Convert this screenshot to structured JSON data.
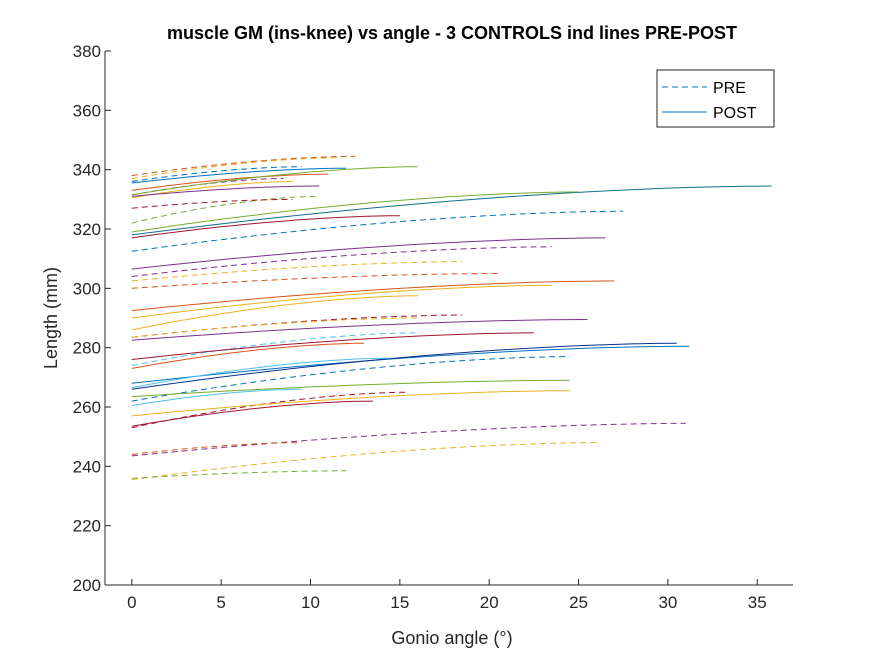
{
  "chart_data": {
    "type": "line",
    "title": "muscle GM (ins-knee) vs angle - 3 CONTROLS ind lines PRE-POST",
    "xlabel": "Gonio angle (°)",
    "ylabel": "Length (mm)",
    "xlim": [
      -1.5,
      37
    ],
    "ylim": [
      200,
      380
    ],
    "xticks": [
      0,
      5,
      10,
      15,
      20,
      25,
      30,
      35
    ],
    "yticks": [
      200,
      220,
      240,
      260,
      280,
      300,
      320,
      340,
      360,
      380
    ],
    "grid": false,
    "legend": {
      "position": "top-right",
      "entries": [
        {
          "label": "PRE",
          "style": "dashed",
          "color": "#0072BD"
        },
        {
          "label": "POST",
          "style": "solid",
          "color": "#0072BD"
        }
      ]
    },
    "series": [
      {
        "style": "dashed",
        "color": "#0072BD",
        "x": [
          0,
          9.5
        ],
        "y": [
          336,
          341
        ]
      },
      {
        "style": "dashed",
        "color": "#D95319",
        "x": [
          0,
          12.5
        ],
        "y": [
          338,
          344.5
        ]
      },
      {
        "style": "dashed",
        "color": "#EDB120",
        "x": [
          0,
          11.5
        ],
        "y": [
          337,
          344
        ]
      },
      {
        "style": "dashed",
        "color": "#7E2F8E",
        "x": [
          0,
          8.5
        ],
        "y": [
          331.5,
          337
        ]
      },
      {
        "style": "dashed",
        "color": "#77AC30",
        "x": [
          0,
          10.5
        ],
        "y": [
          322,
          331
        ]
      },
      {
        "style": "dashed",
        "color": "#A2142F",
        "x": [
          0,
          9
        ],
        "y": [
          327,
          330
        ]
      },
      {
        "style": "dashed",
        "color": "#0072BD",
        "x": [
          0,
          27.5
        ],
        "y": [
          312.5,
          326
        ]
      },
      {
        "style": "dashed",
        "color": "#7E2F8E",
        "x": [
          0,
          23.5
        ],
        "y": [
          304,
          314
        ]
      },
      {
        "style": "dashed",
        "color": "#EDB120",
        "x": [
          0,
          18.5
        ],
        "y": [
          302.5,
          309
        ]
      },
      {
        "style": "dashed",
        "color": "#D95319",
        "x": [
          0,
          20.5
        ],
        "y": [
          300,
          305
        ]
      },
      {
        "style": "dashed",
        "color": "#A2142F",
        "x": [
          0,
          18.5
        ],
        "y": [
          283.5,
          291
        ]
      },
      {
        "style": "dashed",
        "color": "#EDB120",
        "x": [
          0,
          16
        ],
        "y": [
          283.5,
          290
        ]
      },
      {
        "style": "dashed",
        "color": "#4DBEEE",
        "x": [
          0,
          16
        ],
        "y": [
          274,
          285
        ]
      },
      {
        "style": "dashed",
        "color": "#0072BD",
        "x": [
          0,
          24.5
        ],
        "y": [
          262,
          277
        ]
      },
      {
        "style": "dashed",
        "color": "#7E2F8E",
        "x": [
          0,
          31
        ],
        "y": [
          243.5,
          254.5
        ]
      },
      {
        "style": "dashed",
        "color": "#EDB120",
        "x": [
          0,
          26
        ],
        "y": [
          235.5,
          248
        ]
      },
      {
        "style": "dashed",
        "color": "#77AC30",
        "x": [
          0,
          12
        ],
        "y": [
          236,
          238.5
        ]
      },
      {
        "style": "dashed",
        "color": "#D95319",
        "x": [
          0,
          9.5
        ],
        "y": [
          244,
          248
        ]
      },
      {
        "style": "dashed",
        "color": "#A2142F",
        "x": [
          0,
          15.5
        ],
        "y": [
          253,
          265
        ]
      },
      {
        "style": "solid",
        "color": "#0072BD",
        "x": [
          0,
          12
        ],
        "y": [
          335.5,
          340.5
        ]
      },
      {
        "style": "solid",
        "color": "#D95319",
        "x": [
          0,
          11
        ],
        "y": [
          333,
          338.5
        ]
      },
      {
        "style": "solid",
        "color": "#EDB120",
        "x": [
          0,
          9
        ],
        "y": [
          330.5,
          336
        ]
      },
      {
        "style": "solid",
        "color": "#7E2F8E",
        "x": [
          0,
          10.5
        ],
        "y": [
          331,
          334.5
        ]
      },
      {
        "style": "solid",
        "color": "#77AC30",
        "x": [
          0,
          16
        ],
        "y": [
          331.5,
          341
        ]
      },
      {
        "style": "solid",
        "color": "#0F6E8C",
        "x": [
          0,
          35.8
        ],
        "y": [
          318,
          334.5
        ]
      },
      {
        "style": "solid",
        "color": "#77AC30",
        "x": [
          0,
          25
        ],
        "y": [
          319,
          332.5
        ]
      },
      {
        "style": "solid",
        "color": "#A2142F",
        "x": [
          0,
          15
        ],
        "y": [
          317,
          324.5
        ]
      },
      {
        "style": "solid",
        "color": "#7E2F8E",
        "x": [
          0,
          26.5
        ],
        "y": [
          306.5,
          317
        ]
      },
      {
        "style": "solid",
        "color": "#D95319",
        "x": [
          0,
          27
        ],
        "y": [
          292.5,
          302.5
        ]
      },
      {
        "style": "solid",
        "color": "#EDB120",
        "x": [
          0,
          23.5
        ],
        "y": [
          290,
          301
        ]
      },
      {
        "style": "solid",
        "color": "#EDB120",
        "x": [
          0,
          16
        ],
        "y": [
          286,
          297.5
        ]
      },
      {
        "style": "solid",
        "color": "#7E2F8E",
        "x": [
          0,
          25.5
        ],
        "y": [
          282.5,
          289.5
        ]
      },
      {
        "style": "solid",
        "color": "#A2142F",
        "x": [
          0,
          22.5
        ],
        "y": [
          276,
          285
        ]
      },
      {
        "style": "solid",
        "color": "#0072BD",
        "x": [
          0,
          31.2
        ],
        "y": [
          268,
          280.5
        ]
      },
      {
        "style": "solid",
        "color": "#0A2F8C",
        "x": [
          0,
          30.5
        ],
        "y": [
          266,
          281.5
        ]
      },
      {
        "style": "solid",
        "color": "#D95319",
        "x": [
          0,
          13
        ],
        "y": [
          273,
          281.5
        ]
      },
      {
        "style": "solid",
        "color": "#4DBEEE",
        "x": [
          0,
          14.5
        ],
        "y": [
          266.5,
          276.5
        ]
      },
      {
        "style": "solid",
        "color": "#77AC30",
        "x": [
          0,
          24.5
        ],
        "y": [
          263.5,
          269
        ]
      },
      {
        "style": "solid",
        "color": "#EDB120",
        "x": [
          0,
          24.5
        ],
        "y": [
          257,
          265.5
        ]
      },
      {
        "style": "solid",
        "color": "#4DBEEE",
        "x": [
          0,
          9.5
        ],
        "y": [
          260.5,
          266
        ]
      },
      {
        "style": "solid",
        "color": "#A2142F",
        "x": [
          0,
          13.5
        ],
        "y": [
          253.5,
          262
        ]
      }
    ]
  }
}
